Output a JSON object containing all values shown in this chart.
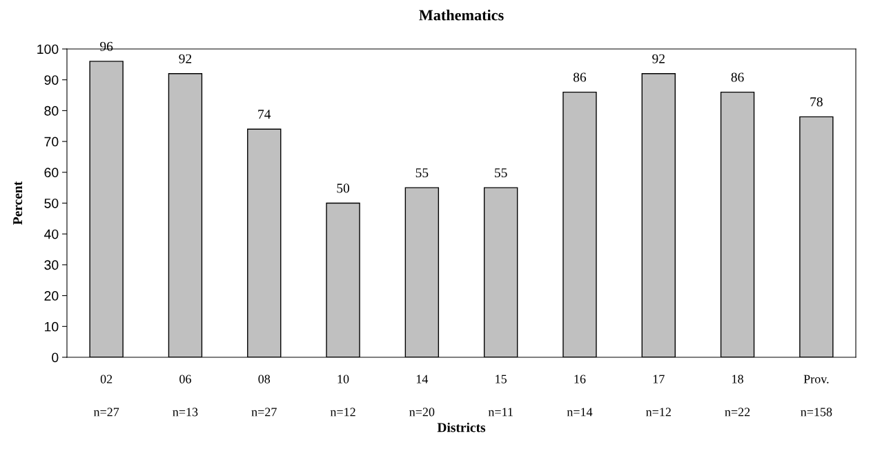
{
  "chart_data": {
    "type": "bar",
    "title": "Mathematics",
    "xlabel": "Districts",
    "ylabel": "Percent",
    "categories": [
      "02\n\nn=27",
      "06\n\nn=13",
      "08\n\nn=27",
      "10\n\nn=12",
      "14\n\nn=20",
      "15\n\nn=11",
      "16\n\nn=14",
      "17\n\nn=12",
      "18\n\nn=22",
      "Prov.\n\nn=158"
    ],
    "values": [
      96,
      92,
      74,
      50,
      55,
      55,
      86,
      92,
      86,
      78
    ],
    "color": "#c0c0c0",
    "ylim": [
      0,
      100
    ],
    "yticks": [
      0,
      10,
      20,
      30,
      40,
      50,
      60,
      70,
      80,
      90,
      100
    ],
    "grid": false,
    "data_labels": true
  }
}
